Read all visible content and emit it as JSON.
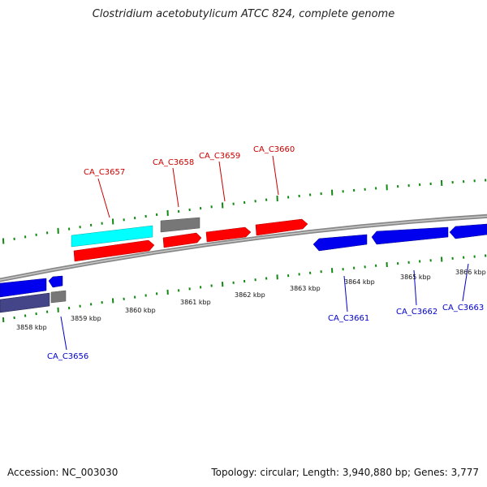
{
  "title": "Clostridium acetobutylicum ATCC 824, complete genome",
  "footer": {
    "accession": "Accession: NC_003030",
    "summary": "Topology: circular; Length: 3,940,880 bp; Genes: 3,777"
  },
  "colors": {
    "forward": "#ff0000",
    "reverse": "#0000ee",
    "highlight": "#00ffff",
    "other": "#666666",
    "backbone": "#999999",
    "tick": "#118811"
  },
  "scale_labels": [
    "3858 kbp",
    "3859 kbp",
    "3860 kbp",
    "3861 kbp",
    "3862 kbp",
    "3863 kbp",
    "3864 kbp",
    "3865 kbp",
    "3866 kbp"
  ],
  "gene_labels": {
    "forward": [
      "CA_C3657",
      "CA_C3658",
      "CA_C3659",
      "CA_C3660"
    ],
    "reverse": [
      "CA_C3656",
      "CA_C3661",
      "CA_C3662",
      "CA_C3663"
    ]
  }
}
